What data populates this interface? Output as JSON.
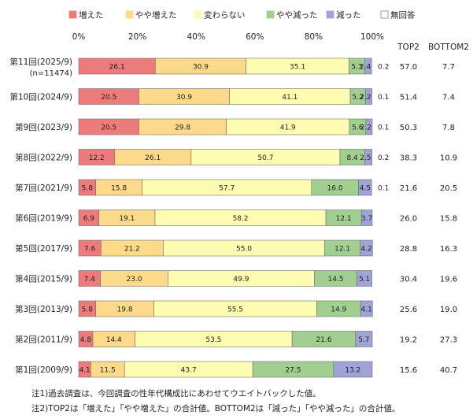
{
  "chart_data": {
    "type": "bar",
    "orientation": "horizontal",
    "stacked": true,
    "percent_axis": true,
    "xlim": [
      0,
      100
    ],
    "x_ticks": [
      "0%",
      "20%",
      "40%",
      "60%",
      "80%",
      "100%"
    ],
    "legend_position": "top",
    "categories": [
      {
        "line1": "第11回(2025/9)",
        "line2": "(n=11474)"
      },
      {
        "line1": "第10回(2024/9)",
        "line2": ""
      },
      {
        "line1": "第9回(2023/9)",
        "line2": ""
      },
      {
        "line1": "第8回(2022/9)",
        "line2": ""
      },
      {
        "line1": "第7回(2021/9)",
        "line2": ""
      },
      {
        "line1": "第6回(2019/9)",
        "line2": ""
      },
      {
        "line1": "第5回(2017/9)",
        "line2": ""
      },
      {
        "line1": "第4回(2015/9)",
        "line2": ""
      },
      {
        "line1": "第3回(2013/9)",
        "line2": ""
      },
      {
        "line1": "第2回(2011/9)",
        "line2": ""
      },
      {
        "line1": "第1回(2009/9)",
        "line2": ""
      }
    ],
    "series": [
      {
        "name": "増えた",
        "color": "#ee7b7b",
        "values": [
          26.1,
          20.5,
          20.5,
          12.2,
          5.8,
          6.9,
          7.6,
          7.4,
          5.8,
          4.8,
          4.1
        ]
      },
      {
        "name": "やや増えた",
        "color": "#fdd98a",
        "values": [
          30.9,
          30.9,
          29.8,
          26.1,
          15.8,
          19.1,
          21.2,
          23.0,
          19.8,
          14.4,
          11.5
        ]
      },
      {
        "name": "変わらない",
        "color": "#fefcb0",
        "values": [
          35.1,
          41.1,
          41.9,
          50.7,
          57.7,
          58.2,
          55.0,
          49.9,
          55.5,
          53.5,
          43.7
        ]
      },
      {
        "name": "やや減った",
        "color": "#a1cf8f",
        "values": [
          5.3,
          5.2,
          5.6,
          8.4,
          16.0,
          12.1,
          12.1,
          14.5,
          14.9,
          21.6,
          27.5
        ]
      },
      {
        "name": "減った",
        "color": "#9fa3d6",
        "values": [
          2.4,
          2.2,
          2.2,
          2.5,
          4.5,
          3.7,
          4.2,
          5.1,
          4.1,
          5.7,
          13.2
        ]
      },
      {
        "name": "無回答",
        "color": "#ffffff",
        "values": [
          0.2,
          0.1,
          0.1,
          0.2,
          0.1,
          0,
          0,
          0,
          0,
          0,
          0
        ]
      }
    ],
    "no_answer_labels": [
      "0.2",
      "0.1",
      "0.1",
      "0.2",
      "0.1",
      "",
      "",
      "",
      "",
      "",
      ""
    ],
    "side_columns": [
      {
        "header": "TOP2",
        "values": [
          "57.0",
          "51.4",
          "50.3",
          "38.3",
          "21.6",
          "26.0",
          "28.8",
          "30.4",
          "25.6",
          "19.2",
          "15.6"
        ]
      },
      {
        "header": "BOTTOM2",
        "values": [
          "7.7",
          "7.4",
          "7.8",
          "10.9",
          "20.5",
          "15.8",
          "16.3",
          "19.6",
          "19.0",
          "27.3",
          "40.7"
        ]
      }
    ]
  },
  "notes": {
    "note1": "注1)過去調査は、今回調査の性年代構成比にあわせてウエイトバックした値。",
    "note2": "注2)TOP2は「増えた」「やや増えた」の合計値。BOTTOM2は「減った」「やや減った」の合計値。"
  }
}
